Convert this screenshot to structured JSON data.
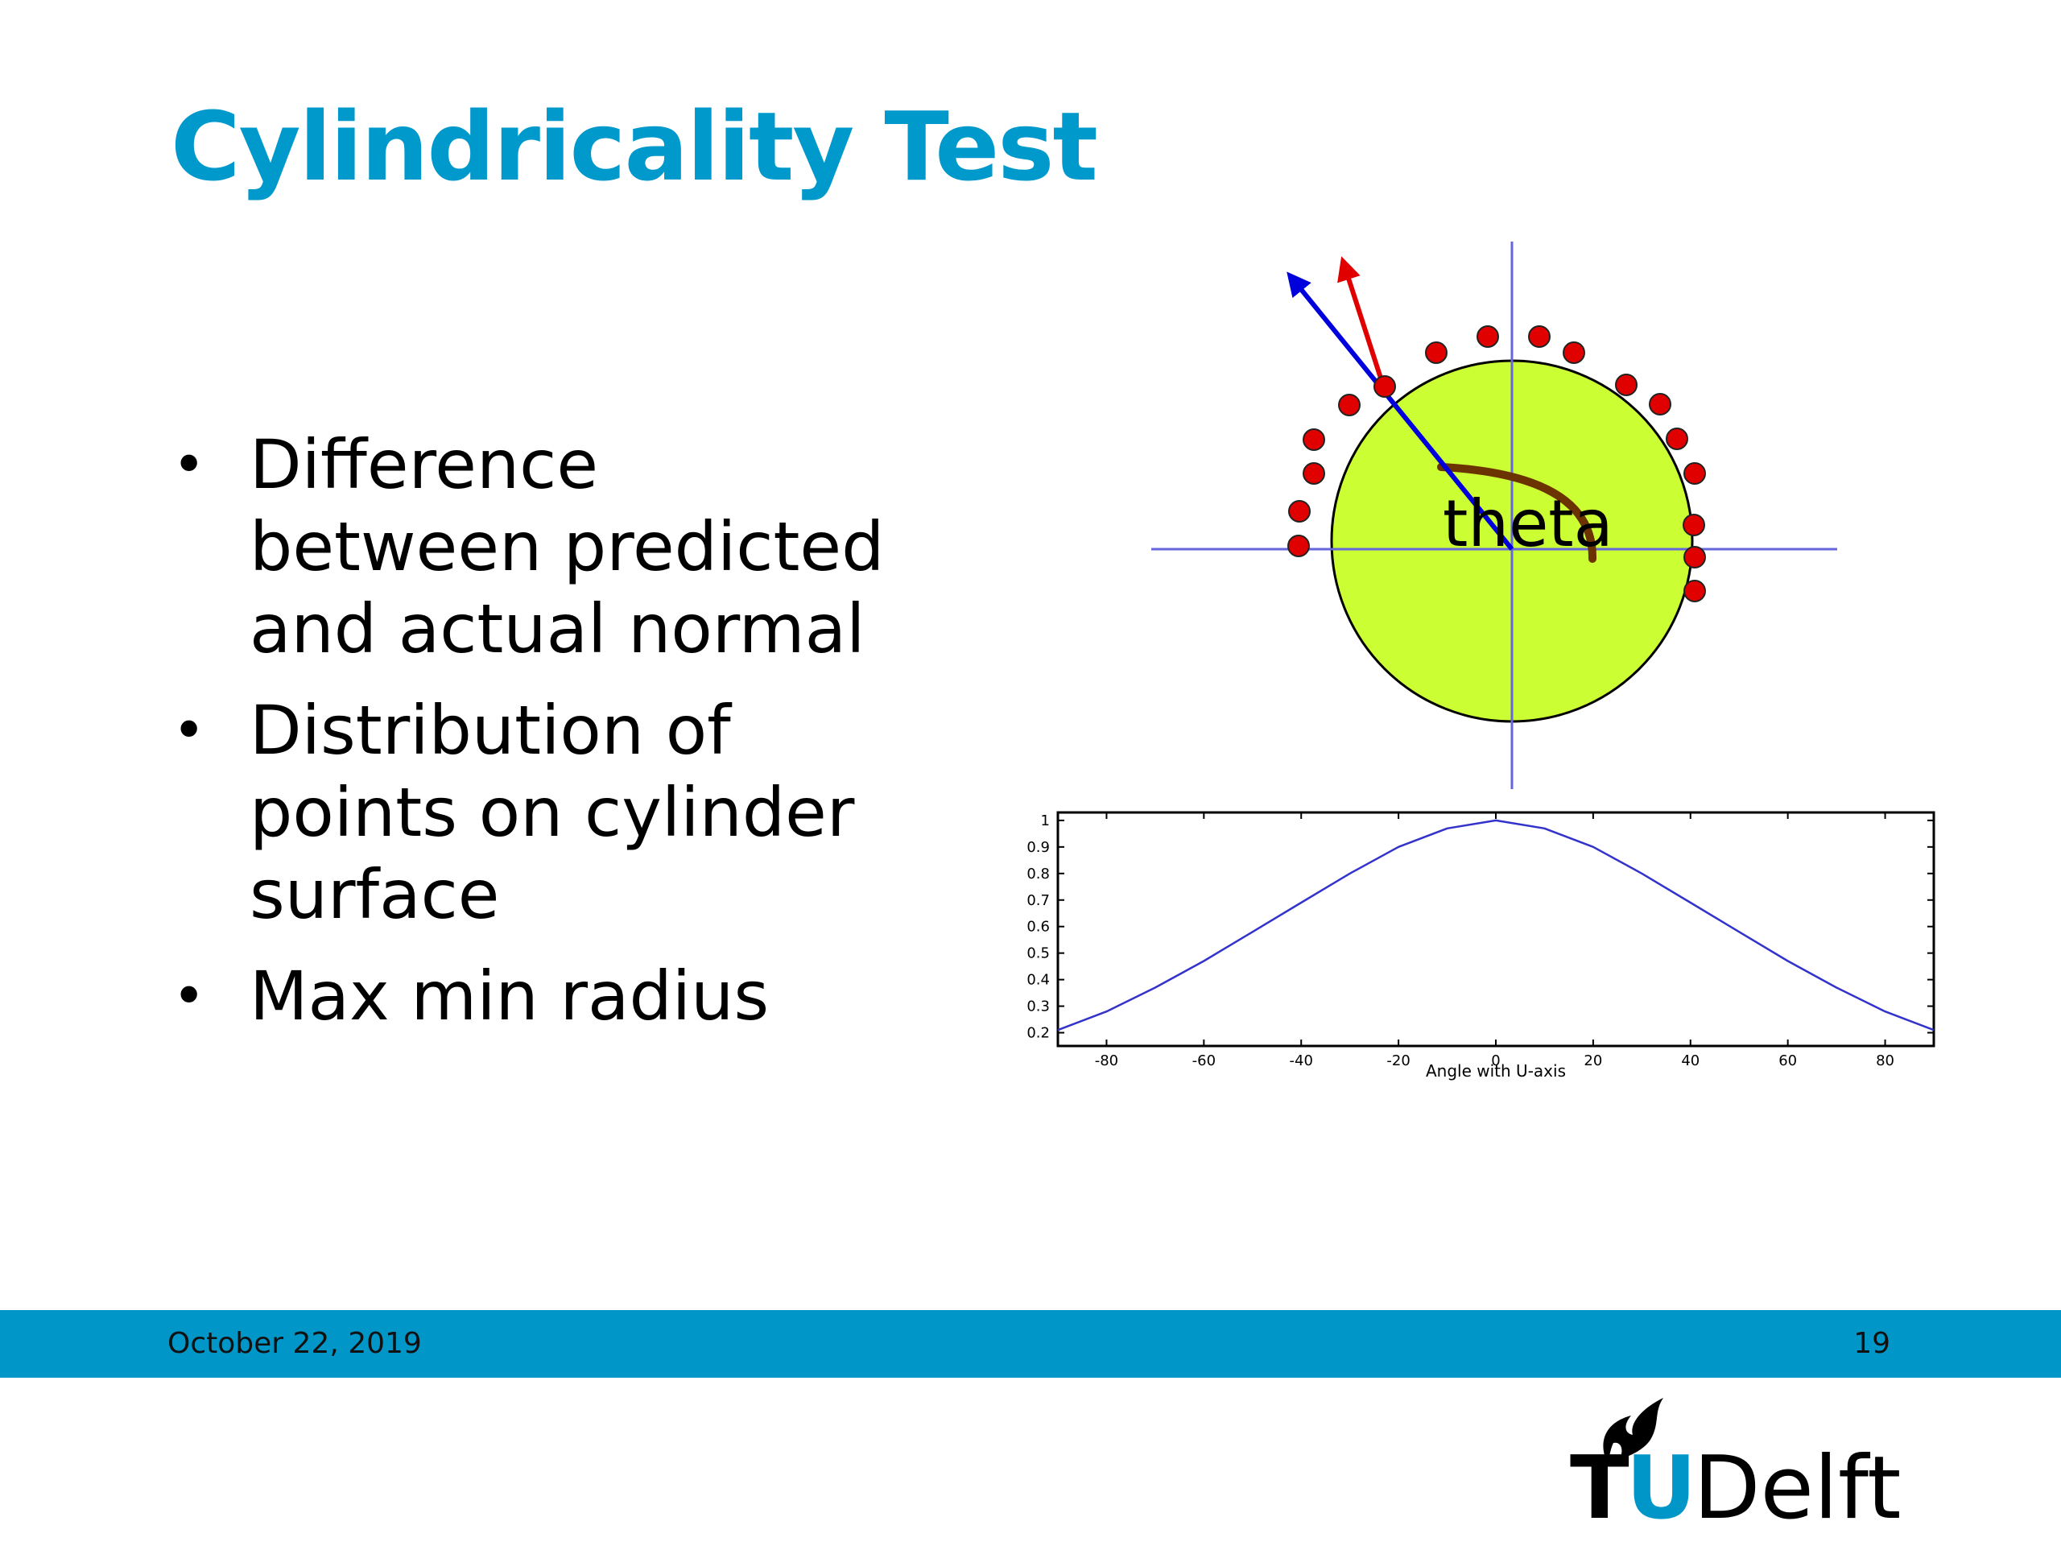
{
  "slide": {
    "title": "Cylindricality Test",
    "bullets": [
      "Difference between predicted and actual normal",
      "Distribution of points on cylinder surface",
      "Max min radius"
    ]
  },
  "diagram": {
    "label": "theta",
    "colors": {
      "circle_fill": "#ccff33",
      "points": "#e00000",
      "predicted_normal": "#0000dd",
      "actual_normal": "#e00000",
      "angle_arc": "#6b3300",
      "axes": "#6666dd"
    }
  },
  "chart_data": {
    "type": "line",
    "title": "",
    "xlabel": "Angle with U-axis",
    "ylabel": "",
    "xlim": [
      -90,
      90
    ],
    "ylim": [
      0.2,
      1.0
    ],
    "xticks": [
      -80,
      -60,
      -40,
      -20,
      0,
      20,
      40,
      60,
      80
    ],
    "yticks": [
      0.2,
      0.3,
      0.4,
      0.5,
      0.6,
      0.7,
      0.8,
      0.9,
      1
    ],
    "xtick_labels": [
      "-80",
      "-60",
      "-40",
      "-20",
      "0",
      "20",
      "40",
      "60",
      "80"
    ],
    "ytick_labels": [
      "0.2",
      "0.3",
      "0.4",
      "0.5",
      "0.6",
      "0.7",
      "0.8",
      "0.9",
      "1"
    ],
    "series": [
      {
        "color": "#3333cc",
        "x": [
          -90,
          -80,
          -70,
          -60,
          -50,
          -40,
          -30,
          -20,
          -10,
          0,
          10,
          20,
          30,
          40,
          50,
          60,
          70,
          80,
          90
        ],
        "y": [
          0.21,
          0.28,
          0.37,
          0.47,
          0.58,
          0.69,
          0.8,
          0.9,
          0.97,
          1.0,
          0.97,
          0.9,
          0.8,
          0.69,
          0.58,
          0.47,
          0.37,
          0.28,
          0.21
        ]
      }
    ],
    "grid": false
  },
  "footer": {
    "date": "October 22, 2019",
    "page_number": "19",
    "bar_color": "#0096c8"
  },
  "logo": {
    "text_tu": "TU",
    "text_delft": "Delft",
    "tu_color": "#000000",
    "u_color": "#0096c8",
    "flame_icon": "flame-icon"
  },
  "theme": {
    "title_color": "#0099cc"
  }
}
